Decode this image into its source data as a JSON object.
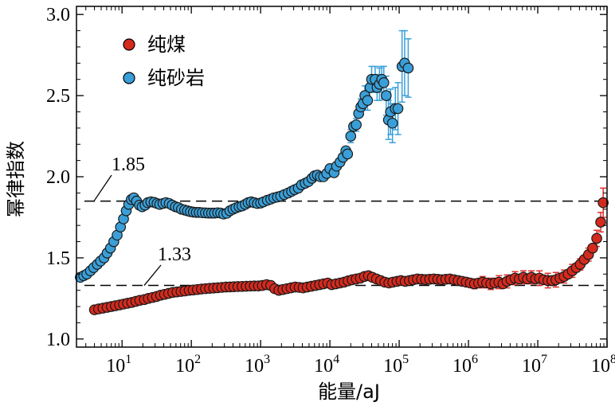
{
  "chart_data": {
    "type": "scatter",
    "xlabel": "能量/aJ",
    "ylabel": "幂律指数",
    "x_scale": "log",
    "xlim": [
      2.2,
      100000000
    ],
    "ylim": [
      0.95,
      3.05
    ],
    "x_ticks": [
      10,
      100,
      1000,
      10000,
      100000,
      1000000,
      10000000,
      100000000
    ],
    "x_tick_base": [
      "10",
      "10",
      "10",
      "10",
      "10",
      "10",
      "10",
      "10"
    ],
    "x_tick_exp": [
      "1",
      "2",
      "3",
      "4",
      "5",
      "6",
      "7",
      "8"
    ],
    "y_ticks": [
      1.0,
      1.5,
      2.0,
      2.5,
      3.0
    ],
    "y_tick_labels": [
      "1.0",
      "1.5",
      "2.0",
      "2.5",
      "3.0"
    ],
    "grid": false,
    "legend": {
      "position": "top-left"
    },
    "colors": {
      "coal": "#d42a1e",
      "sandstone": "#3a9fd8",
      "coal_err": "#e0302a",
      "sandstone_err": "#3aa0d8"
    },
    "annotations": [
      {
        "text": "1.85",
        "y": 1.85
      },
      {
        "text": "1.33",
        "y": 1.33
      }
    ],
    "series": [
      {
        "name": "纯煤",
        "color": "#d42a1e",
        "points": [
          [
            4,
            1.18
          ],
          [
            4.6,
            1.185
          ],
          [
            5.3,
            1.19
          ],
          [
            6.1,
            1.195
          ],
          [
            7,
            1.2
          ],
          [
            8,
            1.205
          ],
          [
            9.2,
            1.21
          ],
          [
            10.5,
            1.215
          ],
          [
            12,
            1.22
          ],
          [
            13.8,
            1.225
          ],
          [
            15.8,
            1.232
          ],
          [
            18,
            1.238
          ],
          [
            21,
            1.243
          ],
          [
            24,
            1.25
          ],
          [
            27.5,
            1.256
          ],
          [
            31.5,
            1.262
          ],
          [
            36,
            1.27
          ],
          [
            41,
            1.275
          ],
          [
            47,
            1.281
          ],
          [
            54,
            1.287
          ],
          [
            62,
            1.29
          ],
          [
            71,
            1.293
          ],
          [
            81,
            1.296
          ],
          [
            93,
            1.3
          ],
          [
            106,
            1.302
          ],
          [
            122,
            1.305
          ],
          [
            140,
            1.308
          ],
          [
            160,
            1.31
          ],
          [
            183,
            1.312
          ],
          [
            210,
            1.314
          ],
          [
            240,
            1.316
          ],
          [
            275,
            1.318
          ],
          [
            315,
            1.32
          ],
          [
            360,
            1.321
          ],
          [
            410,
            1.322
          ],
          [
            470,
            1.323
          ],
          [
            540,
            1.324
          ],
          [
            620,
            1.325
          ],
          [
            710,
            1.326
          ],
          [
            810,
            1.327
          ],
          [
            930,
            1.327
          ],
          [
            1060,
            1.33
          ],
          [
            1220,
            1.335
          ],
          [
            1400,
            1.33
          ],
          [
            1600,
            1.31
          ],
          [
            1830,
            1.3
          ],
          [
            2100,
            1.305
          ],
          [
            2400,
            1.31
          ],
          [
            2750,
            1.315
          ],
          [
            3150,
            1.32
          ],
          [
            3600,
            1.318
          ],
          [
            4100,
            1.315
          ],
          [
            4700,
            1.32
          ],
          [
            5400,
            1.325
          ],
          [
            6200,
            1.33
          ],
          [
            7100,
            1.335
          ],
          [
            8100,
            1.34
          ],
          [
            9300,
            1.345
          ],
          [
            10600,
            1.335
          ],
          [
            12200,
            1.34
          ],
          [
            14000,
            1.345
          ],
          [
            16000,
            1.35
          ],
          [
            18300,
            1.358
          ],
          [
            21000,
            1.365
          ],
          [
            24000,
            1.37
          ],
          [
            27500,
            1.375
          ],
          [
            31500,
            1.385
          ],
          [
            36000,
            1.39
          ],
          [
            41000,
            1.38
          ],
          [
            47000,
            1.37
          ],
          [
            54000,
            1.36
          ],
          [
            62000,
            1.35
          ],
          [
            71000,
            1.345
          ],
          [
            81000,
            1.35
          ],
          [
            93000,
            1.355
          ],
          [
            106000,
            1.36
          ],
          [
            122000,
            1.355
          ],
          [
            140000,
            1.36
          ],
          [
            160000,
            1.365
          ],
          [
            183000,
            1.37
          ],
          [
            210000,
            1.368
          ],
          [
            240000,
            1.366
          ],
          [
            275000,
            1.368
          ],
          [
            315000,
            1.37
          ],
          [
            360000,
            1.368
          ],
          [
            410000,
            1.365
          ],
          [
            470000,
            1.368
          ],
          [
            540000,
            1.37
          ],
          [
            620000,
            1.365
          ],
          [
            710000,
            1.36
          ],
          [
            810000,
            1.355
          ],
          [
            930000,
            1.35
          ],
          [
            1060000,
            1.345
          ],
          [
            1220000,
            1.34
          ],
          [
            1400000,
            1.345
          ],
          [
            1600000,
            1.35
          ],
          [
            1830000,
            1.345
          ],
          [
            2100000,
            1.34
          ],
          [
            2400000,
            1.345
          ],
          [
            2750000,
            1.35
          ],
          [
            3150000,
            1.34
          ],
          [
            3600000,
            1.355
          ],
          [
            4100000,
            1.365
          ],
          [
            4700000,
            1.375
          ],
          [
            5400000,
            1.37
          ],
          [
            6200000,
            1.38
          ],
          [
            7100000,
            1.37
          ],
          [
            8100000,
            1.38
          ],
          [
            9300000,
            1.37
          ],
          [
            10600000,
            1.375
          ],
          [
            12200000,
            1.365
          ],
          [
            14000000,
            1.36
          ],
          [
            16000000,
            1.36
          ],
          [
            18300000,
            1.365
          ],
          [
            21000000,
            1.375
          ],
          [
            24000000,
            1.385
          ],
          [
            27500000,
            1.4
          ],
          [
            31500000,
            1.42
          ],
          [
            36000000,
            1.44
          ],
          [
            41000000,
            1.46
          ],
          [
            47000000,
            1.49
          ],
          [
            54000000,
            1.52
          ],
          [
            62000000,
            1.56
          ],
          [
            71000000,
            1.62
          ],
          [
            81000000,
            1.72
          ],
          [
            88000000,
            1.84
          ]
        ],
        "err_points": [
          [
            1200000,
            0.03
          ],
          [
            1600000,
            0.035
          ],
          [
            2100000,
            0.035
          ],
          [
            2750000,
            0.04
          ],
          [
            3600000,
            0.04
          ],
          [
            4700000,
            0.04
          ],
          [
            6200000,
            0.04
          ],
          [
            8100000,
            0.04
          ],
          [
            10600000,
            0.045
          ],
          [
            14000000,
            0.045
          ],
          [
            18300000,
            0.045
          ],
          [
            24000000,
            0.04
          ],
          [
            31500000,
            0.04
          ],
          [
            41000000,
            0.035
          ],
          [
            54000000,
            0.04
          ],
          [
            71000000,
            0.05
          ],
          [
            81000000,
            0.06
          ],
          [
            88000000,
            0.09
          ]
        ]
      },
      {
        "name": "纯砂岩",
        "color": "#3a9fd8",
        "points": [
          [
            2.5,
            1.38
          ],
          [
            2.8,
            1.39
          ],
          [
            3.1,
            1.4
          ],
          [
            3.5,
            1.42
          ],
          [
            3.9,
            1.44
          ],
          [
            4.4,
            1.46
          ],
          [
            4.9,
            1.48
          ],
          [
            5.5,
            1.5
          ],
          [
            6.1,
            1.53
          ],
          [
            6.8,
            1.56
          ],
          [
            7.6,
            1.6
          ],
          [
            8.5,
            1.64
          ],
          [
            9.5,
            1.69
          ],
          [
            10.5,
            1.74
          ],
          [
            11.5,
            1.79
          ],
          [
            12.5,
            1.83
          ],
          [
            13.6,
            1.86
          ],
          [
            14.8,
            1.87
          ],
          [
            16.2,
            1.85
          ],
          [
            17.8,
            1.825
          ],
          [
            19.5,
            1.815
          ],
          [
            21.5,
            1.825
          ],
          [
            23.5,
            1.84
          ],
          [
            26,
            1.845
          ],
          [
            29,
            1.842
          ],
          [
            32,
            1.835
          ],
          [
            35,
            1.83
          ],
          [
            39,
            1.835
          ],
          [
            43,
            1.84
          ],
          [
            48,
            1.835
          ],
          [
            53,
            1.825
          ],
          [
            59,
            1.815
          ],
          [
            65,
            1.81
          ],
          [
            72,
            1.8
          ],
          [
            80,
            1.795
          ],
          [
            88,
            1.79
          ],
          [
            97,
            1.785
          ],
          [
            107,
            1.782
          ],
          [
            118,
            1.78
          ],
          [
            130,
            1.78
          ],
          [
            144,
            1.778
          ],
          [
            160,
            1.777
          ],
          [
            177,
            1.776
          ],
          [
            196,
            1.776
          ],
          [
            216,
            1.776
          ],
          [
            240,
            1.778
          ],
          [
            265,
            1.776
          ],
          [
            293,
            1.77
          ],
          [
            325,
            1.775
          ],
          [
            360,
            1.79
          ],
          [
            400,
            1.8
          ],
          [
            440,
            1.808
          ],
          [
            490,
            1.815
          ],
          [
            540,
            1.82
          ],
          [
            600,
            1.83
          ],
          [
            660,
            1.84
          ],
          [
            730,
            1.845
          ],
          [
            810,
            1.84
          ],
          [
            900,
            1.835
          ],
          [
            1000,
            1.838
          ],
          [
            1100,
            1.845
          ],
          [
            1250,
            1.855
          ],
          [
            1400,
            1.862
          ],
          [
            1550,
            1.87
          ],
          [
            1750,
            1.875
          ],
          [
            1950,
            1.88
          ],
          [
            2200,
            1.89
          ],
          [
            2500,
            1.9
          ],
          [
            2800,
            1.91
          ],
          [
            3100,
            1.92
          ],
          [
            3500,
            1.93
          ],
          [
            3900,
            1.95
          ],
          [
            4400,
            1.96
          ],
          [
            4900,
            1.97
          ],
          [
            5500,
            1.99
          ],
          [
            6000,
            2.005
          ],
          [
            6600,
            2.01
          ],
          [
            7300,
            2.0
          ],
          [
            8100,
            2.0
          ],
          [
            9000,
            2.02
          ],
          [
            10000,
            2.05
          ],
          [
            11500,
            2.025
          ],
          [
            12500,
            2.065
          ],
          [
            14000,
            2.09
          ],
          [
            15500,
            2.12
          ],
          [
            17000,
            2.16
          ],
          [
            18000,
            2.14
          ],
          [
            20000,
            2.25
          ],
          [
            22000,
            2.31
          ],
          [
            24000,
            2.32
          ],
          [
            26000,
            2.39
          ],
          [
            28000,
            2.43
          ],
          [
            30000,
            2.45
          ],
          [
            32000,
            2.5
          ],
          [
            35000,
            2.47
          ],
          [
            38000,
            2.55
          ],
          [
            40000,
            2.6
          ],
          [
            45000,
            2.6
          ],
          [
            48000,
            2.55
          ],
          [
            52000,
            2.57
          ],
          [
            56000,
            2.6
          ],
          [
            60000,
            2.58
          ],
          [
            65000,
            2.5
          ],
          [
            70000,
            2.35
          ],
          [
            75000,
            2.4
          ],
          [
            80000,
            2.33
          ],
          [
            88000,
            2.42
          ],
          [
            96000,
            2.42
          ],
          [
            110000,
            2.68
          ],
          [
            120000,
            2.7
          ],
          [
            135000,
            2.67
          ]
        ],
        "err_points": [
          [
            20000,
            0.04
          ],
          [
            24000,
            0.04
          ],
          [
            28000,
            0.05
          ],
          [
            32000,
            0.06
          ],
          [
            35000,
            0.06
          ],
          [
            40000,
            0.08
          ],
          [
            45000,
            0.08
          ],
          [
            48000,
            0.08
          ],
          [
            52000,
            0.1
          ],
          [
            56000,
            0.08
          ],
          [
            60000,
            0.1
          ],
          [
            65000,
            0.12
          ],
          [
            70000,
            0.12
          ],
          [
            75000,
            0.14
          ],
          [
            80000,
            0.12
          ],
          [
            88000,
            0.13
          ],
          [
            96000,
            0.16
          ],
          [
            110000,
            0.22
          ],
          [
            120000,
            0.2
          ],
          [
            135000,
            0.18
          ]
        ]
      }
    ]
  }
}
